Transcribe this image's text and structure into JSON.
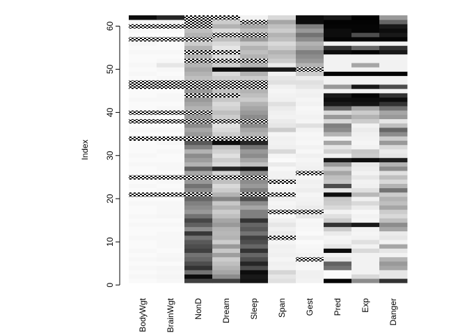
{
  "chart_data": {
    "type": "heatmap",
    "title": "",
    "xlabel": "",
    "ylabel": "Index",
    "columns": [
      "BodyWgt",
      "BrainWgt",
      "NonD",
      "Dream",
      "Sleep",
      "Span",
      "Gest",
      "Pred",
      "Exp",
      "Danger"
    ],
    "y_ticks": [
      0,
      10,
      20,
      30,
      40,
      50,
      60
    ],
    "ylim": [
      1,
      62
    ],
    "missing_pattern": "hatched",
    "colors": {
      "low": "#ffffff",
      "high": "#000000",
      "missing": "#000000"
    },
    "rows": [
      [
        0.02,
        0.03,
        0.75,
        0.75,
        0.92,
        0.12,
        0.05,
        0.98,
        0.45,
        0.8
      ],
      [
        0.03,
        0.04,
        0.95,
        0.45,
        0.9,
        0.1,
        0.06,
        0.02,
        0.15,
        0.1
      ],
      [
        0.02,
        0.03,
        0.55,
        0.35,
        0.95,
        0.16,
        0.06,
        0.02,
        0.05,
        0.1
      ],
      [
        0.03,
        0.04,
        0.8,
        0.3,
        0.7,
        0.05,
        0.03,
        0.55,
        0.05,
        0.35
      ],
      [
        0.02,
        0.02,
        0.7,
        0.25,
        0.85,
        0.06,
        0.04,
        0.62,
        0.05,
        0.4
      ],
      [
        0.03,
        0.04,
        0.6,
        0.2,
        0.7,
        0.04,
        null,
        0.1,
        0.05,
        0.3
      ],
      [
        0.02,
        0.03,
        0.55,
        0.38,
        0.6,
        0.06,
        0.05,
        0.05,
        0.05,
        0.05
      ],
      [
        0.03,
        0.02,
        0.75,
        0.22,
        0.8,
        0.05,
        0.04,
        0.95,
        0.15,
        0.1
      ],
      [
        0.02,
        0.03,
        0.7,
        0.4,
        0.6,
        0.06,
        0.03,
        0.1,
        0.05,
        0.35
      ],
      [
        0.02,
        0.03,
        0.65,
        0.2,
        0.7,
        0.04,
        0.02,
        0.05,
        0.12,
        0.05
      ],
      [
        0.03,
        0.03,
        0.55,
        0.3,
        0.75,
        null,
        0.05,
        0.04,
        0.05,
        0.1
      ],
      [
        0.02,
        0.03,
        0.78,
        0.28,
        0.55,
        0.08,
        0.02,
        0.08,
        0.04,
        0.08
      ],
      [
        0.02,
        0.02,
        0.45,
        0.3,
        0.65,
        0.06,
        0.03,
        0.2,
        0.05,
        0.35
      ],
      [
        0.03,
        0.03,
        0.62,
        0.4,
        0.6,
        0.1,
        0.04,
        0.8,
        0.9,
        0.45
      ],
      [
        0.02,
        0.02,
        0.72,
        0.35,
        0.8,
        0.06,
        0.03,
        0.2,
        0.04,
        0.25
      ],
      [
        0.03,
        0.04,
        0.55,
        0.25,
        0.5,
        0.03,
        0.1,
        0.12,
        0.05,
        0.15
      ],
      [
        0.02,
        0.03,
        0.4,
        0.2,
        0.5,
        null,
        null,
        0.05,
        0.03,
        0.2
      ],
      [
        0.02,
        0.03,
        0.45,
        0.3,
        0.35,
        0.05,
        0.08,
        0.15,
        0.08,
        0.35
      ],
      [
        0.03,
        0.03,
        0.5,
        0.22,
        0.45,
        0.04,
        0.06,
        0.2,
        0.15,
        0.25
      ],
      [
        0.02,
        0.02,
        0.6,
        0.48,
        0.7,
        0.06,
        0.05,
        0.22,
        0.06,
        0.3
      ],
      [
        null,
        null,
        null,
        0.3,
        null,
        null,
        0.04,
        0.95,
        0.28,
        0.2
      ],
      [
        0.02,
        0.03,
        0.45,
        0.2,
        0.5,
        0.06,
        0.07,
        0.1,
        0.12,
        0.55
      ],
      [
        0.03,
        0.02,
        0.55,
        0.15,
        0.4,
        0.04,
        0.05,
        0.7,
        0.06,
        0.3
      ],
      [
        0.02,
        0.03,
        0.4,
        0.25,
        0.45,
        null,
        0.06,
        0.22,
        0.05,
        0.15
      ],
      [
        null,
        null,
        null,
        null,
        null,
        0.05,
        0.04,
        0.25,
        0.1,
        0.25
      ],
      [
        0.02,
        0.02,
        0.35,
        0.18,
        0.45,
        0.05,
        null,
        0.35,
        0.05,
        0.12
      ],
      [
        0.02,
        0.03,
        0.62,
        0.85,
        0.9,
        0.03,
        0.06,
        0.2,
        0.08,
        0.45
      ],
      [
        0.03,
        0.03,
        0.3,
        0.15,
        0.25,
        0.08,
        0.05,
        0.4,
        0.1,
        0.3
      ],
      [
        0.02,
        0.02,
        0.38,
        0.2,
        0.35,
        0.02,
        0.04,
        0.9,
        0.95,
        0.88
      ],
      [
        0.03,
        0.02,
        0.45,
        0.12,
        0.45,
        0.04,
        0.06,
        0.05,
        0.2,
        0.1
      ],
      [
        0.02,
        0.03,
        0.3,
        0.18,
        0.4,
        0.15,
        0.03,
        0.18,
        0.22,
        0.08
      ],
      [
        0.02,
        0.02,
        0.5,
        0.25,
        0.55,
        0.06,
        0.05,
        0.1,
        0.05,
        0.15
      ],
      [
        0.02,
        0.03,
        0.65,
        0.95,
        0.85,
        0.05,
        0.03,
        0.35,
        0.04,
        0.4
      ],
      [
        null,
        null,
        null,
        null,
        null,
        0.06,
        0.04,
        0.05,
        0.05,
        0.2
      ],
      [
        0.02,
        0.02,
        0.4,
        0.2,
        0.3,
        0.04,
        0.03,
        0.3,
        0.06,
        0.45
      ],
      [
        0.03,
        0.03,
        0.35,
        0.15,
        0.35,
        0.2,
        0.05,
        0.45,
        0.08,
        0.6
      ],
      [
        0.02,
        0.02,
        0.45,
        0.12,
        0.45,
        0.1,
        0.12,
        0.5,
        0.05,
        0.25
      ],
      [
        null,
        null,
        null,
        null,
        null,
        0.08,
        0.04,
        0.15,
        0.2,
        0.1
      ],
      [
        0.03,
        0.02,
        0.4,
        0.2,
        0.45,
        0.05,
        0.05,
        0.4,
        0.3,
        0.4
      ],
      [
        null,
        null,
        null,
        0.25,
        0.4,
        0.06,
        0.04,
        0.15,
        0.2,
        0.35
      ],
      [
        0.02,
        0.03,
        0.3,
        0.18,
        0.35,
        0.08,
        0.03,
        0.6,
        0.35,
        0.55
      ],
      [
        0.02,
        0.02,
        0.35,
        0.15,
        0.3,
        0.12,
        0.05,
        0.9,
        0.92,
        0.8
      ],
      [
        0.03,
        0.03,
        0.4,
        0.22,
        0.2,
        0.06,
        0.04,
        0.95,
        0.95,
        0.95
      ],
      [
        0.02,
        0.03,
        null,
        null,
        0.25,
        0.05,
        0.06,
        0.9,
        0.98,
        0.8
      ],
      [
        0.02,
        0.02,
        0.4,
        0.25,
        0.3,
        0.04,
        0.05,
        0.05,
        0.05,
        0.05
      ],
      [
        null,
        null,
        null,
        null,
        null,
        0.06,
        0.1,
        0.4,
        0.9,
        0.7
      ],
      [
        null,
        null,
        null,
        null,
        null,
        0.12,
        0.12,
        0.05,
        0.05,
        0.05
      ],
      [
        0.02,
        0.03,
        0.25,
        0.2,
        0.2,
        0.1,
        0.08,
        0.05,
        0.05,
        0.05
      ],
      [
        0.03,
        0.02,
        0.3,
        0.15,
        0.3,
        0.05,
        0.2,
        0.98,
        0.98,
        0.98
      ],
      [
        0.02,
        0.03,
        0.35,
        0.95,
        0.9,
        0.9,
        null,
        0.05,
        0.05,
        0.05
      ],
      [
        0.03,
        0.1,
        0.3,
        0.2,
        0.3,
        0.08,
        0.3,
        0.05,
        0.35,
        0.05
      ],
      [
        0.02,
        0.03,
        null,
        null,
        null,
        0.2,
        0.4,
        0.05,
        0.05,
        0.05
      ],
      [
        0.02,
        0.02,
        0.3,
        0.15,
        0.3,
        0.25,
        0.45,
        0.05,
        0.05,
        0.05
      ],
      [
        0.03,
        0.03,
        null,
        null,
        0.25,
        0.3,
        0.5,
        0.95,
        0.98,
        0.9
      ],
      [
        0.02,
        0.02,
        0.3,
        0.1,
        0.3,
        0.2,
        0.35,
        0.8,
        0.6,
        0.8
      ],
      [
        0.03,
        0.02,
        0.2,
        0.15,
        0.2,
        0.15,
        0.3,
        0.05,
        0.05,
        0.05
      ],
      [
        null,
        null,
        null,
        0.25,
        0.4,
        0.25,
        0.45,
        0.98,
        0.98,
        0.98
      ],
      [
        0.02,
        0.02,
        0.3,
        null,
        null,
        0.3,
        0.55,
        0.95,
        0.7,
        0.9
      ],
      [
        0.03,
        0.03,
        0.25,
        0.15,
        0.25,
        0.2,
        0.4,
        0.95,
        0.98,
        0.95
      ],
      [
        null,
        null,
        null,
        0.3,
        0.35,
        0.25,
        0.5,
        0.98,
        0.98,
        0.9
      ],
      [
        0.04,
        0.05,
        null,
        0.2,
        null,
        0.35,
        0.95,
        0.99,
        0.99,
        0.6
      ],
      [
        0.95,
        0.85,
        null,
        null,
        0.05,
        0.15,
        0.95,
        0.9,
        0.99,
        0.4
      ]
    ]
  }
}
